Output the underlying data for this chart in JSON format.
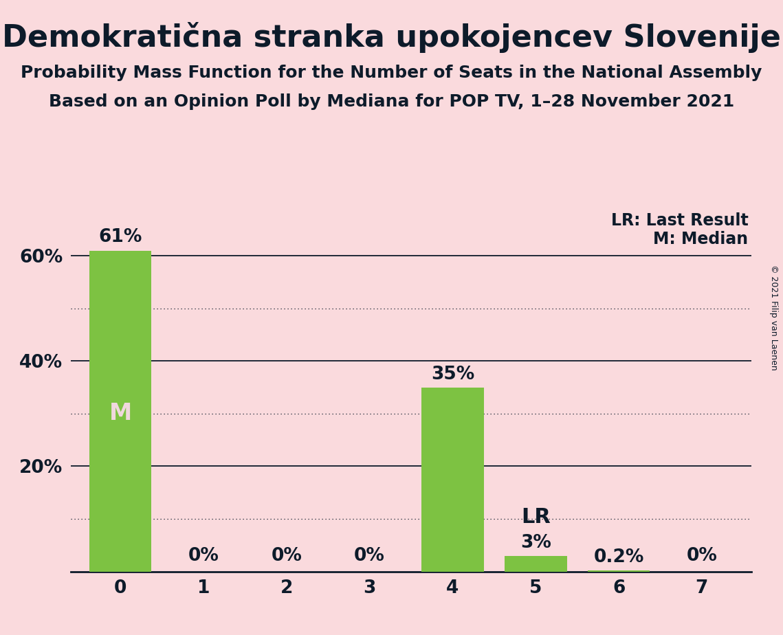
{
  "title": "Demokratična stranka upokojencev Slovenije",
  "subtitle1": "Probability Mass Function for the Number of Seats in the National Assembly",
  "subtitle2": "Based on an Opinion Poll by Mediana for POP TV, 1–28 November 2021",
  "copyright": "© 2021 Filip van Laenen",
  "categories": [
    0,
    1,
    2,
    3,
    4,
    5,
    6,
    7
  ],
  "values": [
    61.0,
    0.0,
    0.0,
    0.0,
    35.0,
    3.0,
    0.2,
    0.0
  ],
  "bar_labels": [
    "61%",
    "0%",
    "0%",
    "0%",
    "35%",
    "3%",
    "0.2%",
    "0%"
  ],
  "bar_color": "#7dc242",
  "background_color": "#fadadd",
  "text_color": "#0d1b2a",
  "median_bar": 0,
  "median_label": "M",
  "lr_bar": 5,
  "lr_label": "LR",
  "legend_lr": "LR: Last Result",
  "legend_m": "M: Median",
  "ylim": [
    0,
    70
  ],
  "solid_lines": [
    20,
    40,
    60
  ],
  "dotted_lines": [
    10,
    30,
    50
  ],
  "title_fontsize": 32,
  "subtitle_fontsize": 18,
  "label_fontsize": 19,
  "tick_fontsize": 19,
  "legend_fontsize": 17,
  "median_fontsize": 24,
  "lr_fontsize": 22,
  "copyright_fontsize": 9
}
